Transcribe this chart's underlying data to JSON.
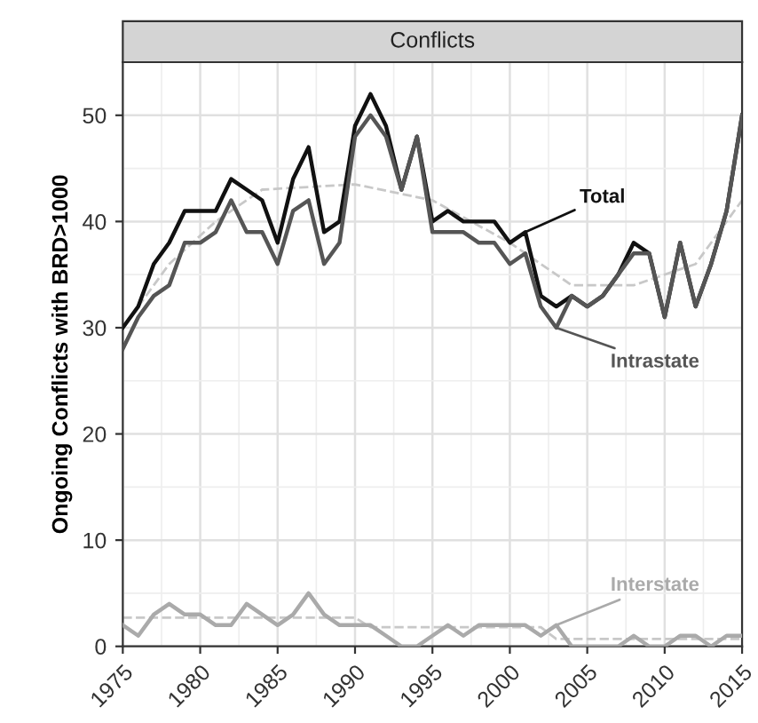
{
  "chart_data": {
    "type": "line",
    "title": "Conflicts",
    "ylabel": "Ongoing Conflicts with BRD>1000",
    "x": [
      1975,
      1976,
      1977,
      1978,
      1979,
      1980,
      1981,
      1982,
      1983,
      1984,
      1985,
      1986,
      1987,
      1988,
      1989,
      1990,
      1991,
      1992,
      1993,
      1994,
      1995,
      1996,
      1997,
      1998,
      1999,
      2000,
      2001,
      2002,
      2003,
      2004,
      2005,
      2006,
      2007,
      2008,
      2009,
      2010,
      2011,
      2012,
      2013,
      2014,
      2015
    ],
    "series": [
      {
        "name": "Total",
        "color": "#111111",
        "values": [
          30,
          32,
          36,
          38,
          41,
          41,
          41,
          44,
          43,
          42,
          38,
          44,
          47,
          39,
          40,
          49,
          52,
          49,
          43,
          48,
          40,
          41,
          40,
          40,
          40,
          38,
          39,
          33,
          32,
          33,
          32,
          33,
          35,
          38,
          37,
          31,
          38,
          32,
          36,
          41,
          50
        ]
      },
      {
        "name": "Intrastate",
        "color": "#555555",
        "values": [
          28,
          31,
          33,
          34,
          38,
          38,
          39,
          42,
          39,
          39,
          36,
          41,
          42,
          36,
          38,
          48,
          50,
          48,
          43,
          48,
          39,
          39,
          39,
          38,
          38,
          36,
          37,
          32,
          30,
          33,
          32,
          33,
          35,
          37,
          37,
          31,
          38,
          32,
          36,
          41,
          50
        ]
      },
      {
        "name": "Interstate",
        "color": "#aaaaaa",
        "values": [
          2,
          1,
          3,
          4,
          3,
          3,
          2,
          2,
          4,
          3,
          2,
          3,
          5,
          3,
          2,
          2,
          2,
          1,
          0,
          0,
          1,
          2,
          1,
          2,
          2,
          2,
          2,
          1,
          2,
          0,
          0,
          0,
          0,
          1,
          0,
          0,
          1,
          1,
          0,
          1,
          1
        ]
      },
      {
        "color": "#c8c8c8",
        "line_style": "dashed",
        "x": [
          1975,
          1978,
          1981,
          1984,
          1990,
          1995,
          2000,
          2004,
          2008,
          2012,
          2015
        ],
        "values": [
          30,
          36,
          40,
          43,
          43.5,
          42,
          38,
          34,
          34,
          36,
          42
        ]
      },
      {
        "color": "#c8c8c8",
        "line_style": "dashed",
        "x": [
          1975,
          1990,
          1991,
          2002,
          2003,
          2015
        ],
        "values": [
          2.7,
          2.7,
          1.8,
          1.8,
          0.7,
          0.7
        ]
      }
    ],
    "xlim": [
      1975,
      2015
    ],
    "xticks": [
      1975,
      1980,
      1985,
      1990,
      1995,
      2000,
      2005,
      2010,
      2015
    ],
    "ylim": [
      0,
      55
    ],
    "yticks": [
      0,
      10,
      20,
      30,
      40,
      50
    ],
    "grid": true,
    "legend": false
  }
}
